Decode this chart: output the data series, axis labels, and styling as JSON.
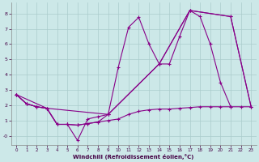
{
  "xlabel": "Windchill (Refroidissement éolien,°C)",
  "background_color": "#cce8e8",
  "grid_color": "#aacccc",
  "line_color": "#880088",
  "xlim_min": -0.5,
  "xlim_max": 23.5,
  "ylim_min": -0.6,
  "ylim_max": 8.7,
  "xticks": [
    0,
    1,
    2,
    3,
    4,
    5,
    6,
    7,
    8,
    9,
    10,
    11,
    12,
    13,
    14,
    15,
    16,
    17,
    18,
    19,
    20,
    21,
    22,
    23
  ],
  "yticks": [
    0,
    1,
    2,
    3,
    4,
    5,
    6,
    7,
    8
  ],
  "ytick_labels": [
    "-0",
    "1",
    "2",
    "3",
    "4",
    "5",
    "6",
    "7",
    "8"
  ],
  "line1_x": [
    0,
    1,
    2,
    3,
    4,
    5,
    6,
    7,
    8,
    9,
    10,
    11,
    12,
    13,
    14,
    15,
    16,
    17,
    18,
    19,
    20,
    21
  ],
  "line1_y": [
    2.7,
    2.1,
    1.9,
    1.8,
    0.75,
    0.75,
    -0.3,
    1.1,
    1.25,
    1.4,
    4.5,
    7.1,
    7.75,
    6.0,
    4.7,
    4.7,
    6.5,
    8.2,
    7.8,
    6.0,
    3.5,
    1.9
  ],
  "line2_x": [
    0,
    1,
    2,
    3,
    4,
    5,
    6,
    7,
    8,
    9,
    10,
    11,
    12,
    13,
    14,
    15,
    16,
    17,
    18,
    19,
    20,
    21,
    22,
    23
  ],
  "line2_y": [
    2.7,
    2.1,
    1.9,
    1.8,
    0.75,
    0.75,
    0.7,
    0.8,
    0.9,
    1.0,
    1.1,
    1.4,
    1.6,
    1.7,
    1.75,
    1.75,
    1.8,
    1.85,
    1.9,
    1.9,
    1.9,
    1.9,
    1.9,
    1.9
  ],
  "line3_x": [
    0,
    3,
    9,
    14,
    17,
    21,
    23
  ],
  "line3_y": [
    2.7,
    1.8,
    1.4,
    4.7,
    8.2,
    7.8,
    1.9
  ],
  "line4_x": [
    0,
    1,
    2,
    3,
    4,
    5,
    6,
    7,
    8,
    9,
    14,
    17,
    21,
    23
  ],
  "line4_y": [
    2.7,
    2.1,
    1.9,
    1.8,
    0.75,
    0.75,
    0.7,
    0.8,
    0.9,
    1.4,
    4.7,
    8.2,
    7.8,
    1.9
  ]
}
